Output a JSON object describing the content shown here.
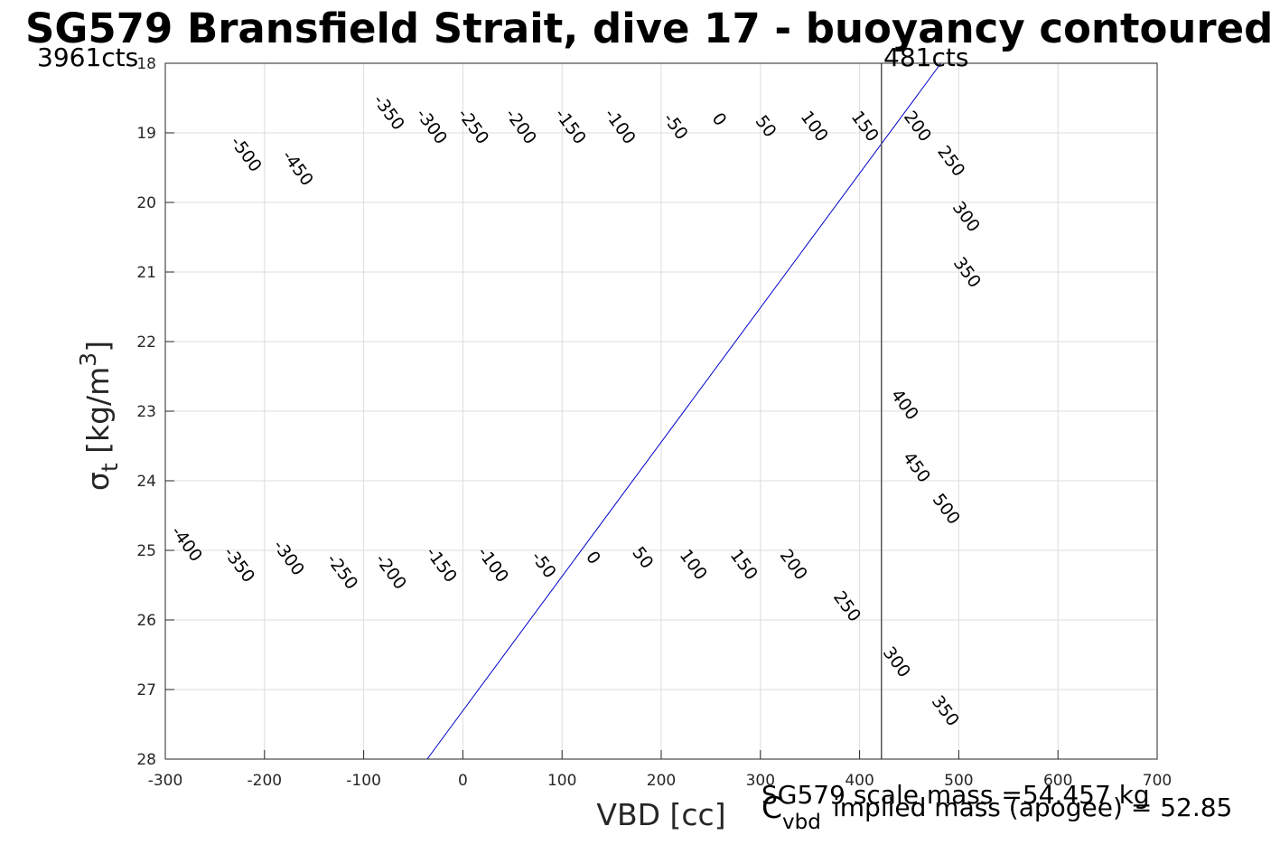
{
  "chart_data": {
    "type": "line",
    "title": "SG579 Bransfield Strait, dive 17 - buoyancy contoured",
    "xlabel": "VBD [cc]",
    "ylabel": {
      "symbol": "σ",
      "sub": "t",
      "rest": " [kg/m",
      "sup": "3",
      "close": "]"
    },
    "xlim": [
      -300,
      700
    ],
    "ylim": [
      18,
      28
    ],
    "y_reversed": true,
    "xticks": [
      -300,
      -200,
      -100,
      0,
      100,
      200,
      300,
      400,
      500,
      600,
      700
    ],
    "yticks": [
      18,
      19,
      20,
      21,
      22,
      23,
      24,
      25,
      26,
      27,
      28
    ],
    "grid": true,
    "contour_model": {
      "zero_line_x_at_sigma_18": 482,
      "zero_line_x_at_sigma_28": -36,
      "level_spacing_vbd_cc": 51.5
    },
    "contour_levels": [
      -500,
      -450,
      -400,
      -350,
      -300,
      -250,
      -200,
      -150,
      -100,
      -50,
      0,
      50,
      100,
      150,
      200,
      250,
      300,
      350,
      400,
      450,
      500
    ],
    "contour_colors": {
      "default": "#00f0f0",
      "zero": "#0000cc",
      "highlight": "#b000e0",
      "highlight_levels": [
        100,
        200
      ]
    },
    "contour_labels_upper": [
      {
        "level": -500,
        "vbd": -218,
        "sigma": 19.3
      },
      {
        "level": -450,
        "vbd": -166,
        "sigma": 19.5
      },
      {
        "level": -350,
        "vbd": -74,
        "sigma": 18.7
      },
      {
        "level": -300,
        "vbd": -31,
        "sigma": 18.9
      },
      {
        "level": -250,
        "vbd": 11,
        "sigma": 18.9
      },
      {
        "level": -200,
        "vbd": 59,
        "sigma": 18.9
      },
      {
        "level": -150,
        "vbd": 109,
        "sigma": 18.9
      },
      {
        "level": -100,
        "vbd": 159,
        "sigma": 18.9
      },
      {
        "level": -50,
        "vbd": 215,
        "sigma": 18.9
      },
      {
        "level": 0,
        "vbd": 259,
        "sigma": 18.8
      },
      {
        "level": 50,
        "vbd": 306,
        "sigma": 18.9
      },
      {
        "level": 100,
        "vbd": 355,
        "sigma": 18.9
      },
      {
        "level": 150,
        "vbd": 406,
        "sigma": 18.9
      },
      {
        "level": 200,
        "vbd": 459,
        "sigma": 18.9
      },
      {
        "level": 250,
        "vbd": 493,
        "sigma": 19.4
      },
      {
        "level": 300,
        "vbd": 508,
        "sigma": 20.2
      },
      {
        "level": 350,
        "vbd": 509,
        "sigma": 21.0
      },
      {
        "level": 400,
        "vbd": 446,
        "sigma": 22.9
      },
      {
        "level": 450,
        "vbd": 458,
        "sigma": 23.8
      },
      {
        "level": 500,
        "vbd": 488,
        "sigma": 24.4
      }
    ],
    "contour_labels_lower": [
      {
        "level": -400,
        "vbd": -278,
        "sigma": 24.9
      },
      {
        "level": -350,
        "vbd": -225,
        "sigma": 25.2
      },
      {
        "level": -300,
        "vbd": -175,
        "sigma": 25.1
      },
      {
        "level": -250,
        "vbd": -121,
        "sigma": 25.3
      },
      {
        "level": -200,
        "vbd": -72,
        "sigma": 25.3
      },
      {
        "level": -150,
        "vbd": -21,
        "sigma": 25.2
      },
      {
        "level": -100,
        "vbd": 31,
        "sigma": 25.2
      },
      {
        "level": -50,
        "vbd": 82,
        "sigma": 25.2
      },
      {
        "level": 0,
        "vbd": 132,
        "sigma": 25.1
      },
      {
        "level": 50,
        "vbd": 182,
        "sigma": 25.1
      },
      {
        "level": 100,
        "vbd": 233,
        "sigma": 25.2
      },
      {
        "level": 150,
        "vbd": 284,
        "sigma": 25.2
      },
      {
        "level": 200,
        "vbd": 334,
        "sigma": 25.2
      },
      {
        "level": 250,
        "vbd": 388,
        "sigma": 25.8
      },
      {
        "level": 300,
        "vbd": 438,
        "sigma": 26.6
      },
      {
        "level": 350,
        "vbd": 487,
        "sigma": 27.3
      }
    ],
    "reference_line": {
      "vbd": 422,
      "color": "#555555"
    },
    "corner_labels": {
      "left": "3961cts",
      "right": "481cts"
    },
    "footer": {
      "mass_text": "SG579 scale mass =54.457 kg",
      "cvbd_symbol": "C",
      "cvbd_sub": "vbd",
      "implied_text": "implied mass (apogee) = 52.85"
    }
  }
}
